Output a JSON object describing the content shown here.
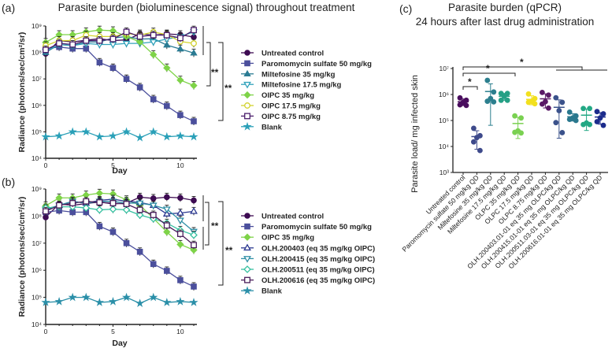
{
  "chart_data": [
    {
      "panel_label": "(a)",
      "type": "line",
      "title": "Parasite burden (bioluminescence signal) throughout treatment",
      "xlabel": "Day",
      "ylabel": "Radiance (photons/sec/cm²/sr)",
      "yscale": "log",
      "ylim": [
        10000.0,
        1000000000.0
      ],
      "xlim": [
        0,
        11
      ],
      "xticks": [
        0,
        5,
        10
      ],
      "xtick_labels": [
        "0",
        "5",
        "10"
      ],
      "yticks": [
        10000.0,
        100000.0,
        1000000.0,
        10000000.0,
        100000000.0,
        1000000000.0
      ],
      "ytick_labels": [
        "10⁴",
        "10⁵",
        "10⁶",
        "10⁷",
        "10⁸",
        "10⁹"
      ],
      "legend_position": "right",
      "x": [
        0,
        1,
        2,
        3,
        4,
        5,
        6,
        7,
        8,
        9,
        10,
        11
      ],
      "series": [
        {
          "name": "Untreated control",
          "marker": "circle",
          "color": "#3d0b52",
          "values": [
            90000000.0,
            280000000.0,
            250000000.0,
            290000000.0,
            330000000.0,
            280000000.0,
            300000000.0,
            500000000.0,
            450000000.0,
            500000000.0,
            470000000.0,
            380000000.0
          ]
        },
        {
          "name": "Paromomycin sulfate 50 mg/kg",
          "marker": "square",
          "color": "#4b4f9c",
          "values": [
            140000000.0,
            160000000.0,
            140000000.0,
            140000000.0,
            42000000.0,
            26000000.0,
            10000000.0,
            4800000.0,
            1700000.0,
            950000.0,
            430000.0,
            250000.0
          ]
        },
        {
          "name": "Miltefosine 35 mg/kg",
          "marker": "triangle-up",
          "color": "#2a7b93",
          "values": [
            100000000.0,
            200000000.0,
            180000000.0,
            250000000.0,
            250000000.0,
            350000000.0,
            400000000.0,
            320000000.0,
            330000000.0,
            190000000.0,
            135000000.0,
            95000000.0
          ]
        },
        {
          "name": "Miltefosine 17.5 mg/kg",
          "marker": "triangle-down-open",
          "color": "#31a2bb",
          "values": [
            110000000.0,
            200000000.0,
            180000000.0,
            220000000.0,
            200000000.0,
            200000000.0,
            220000000.0,
            220000000.0,
            250000000.0,
            320000000.0,
            400000000.0,
            600000000.0
          ]
        },
        {
          "name": "OlPC 35 mg/kg",
          "marker": "diamond",
          "color": "#7ed348",
          "values": [
            240000000.0,
            470000000.0,
            470000000.0,
            600000000.0,
            700000000.0,
            660000000.0,
            400000000.0,
            250000000.0,
            83000000.0,
            26000000.0,
            9000000.0,
            5600000.0
          ]
        },
        {
          "name": "OlPC 17.5 mg/kg",
          "marker": "circle-open",
          "color": "#d2d22e",
          "values": [
            180000000.0,
            280000000.0,
            280000000.0,
            450000000.0,
            400000000.0,
            400000000.0,
            520000000.0,
            450000000.0,
            590000000.0,
            470000000.0,
            260000000.0,
            220000000.0
          ]
        },
        {
          "name": "OlPC 8.75 mg/kg",
          "marker": "square-open",
          "color": "#4a1e6b",
          "values": [
            125000000.0,
            220000000.0,
            200000000.0,
            280000000.0,
            280000000.0,
            320000000.0,
            600000000.0,
            400000000.0,
            450000000.0,
            450000000.0,
            350000000.0,
            700000000.0
          ]
        },
        {
          "name": "Blank",
          "marker": "star",
          "color": "#2aa0b8",
          "values": [
            65000.0,
            70000.0,
            100000.0,
            100000.0,
            65000.0,
            70000.0,
            100000.0,
            60000.0,
            100000.0,
            65000.0,
            70000.0,
            65000.0
          ]
        }
      ],
      "annotations": [
        "**",
        "**"
      ]
    },
    {
      "panel_label": "(b)",
      "type": "line",
      "title": "",
      "xlabel": "Day",
      "ylabel": "Radiance (photons/sec/cm²/sr)",
      "yscale": "log",
      "ylim": [
        10000.0,
        1000000000.0
      ],
      "xlim": [
        0,
        11
      ],
      "xticks": [
        0,
        5,
        10
      ],
      "xtick_labels": [
        "0",
        "5",
        "10"
      ],
      "yticks": [
        10000.0,
        100000.0,
        1000000.0,
        10000000.0,
        100000000.0,
        1000000000.0
      ],
      "ytick_labels": [
        "10⁴",
        "10⁵",
        "10⁶",
        "10⁷",
        "10⁸",
        "10⁹"
      ],
      "legend_position": "right",
      "x": [
        0,
        1,
        2,
        3,
        4,
        5,
        6,
        7,
        8,
        9,
        10,
        11
      ],
      "series": [
        {
          "name": "Untreated control",
          "marker": "circle",
          "color": "#3d0b52",
          "values": [
            90000000.0,
            280000000.0,
            250000000.0,
            290000000.0,
            330000000.0,
            280000000.0,
            300000000.0,
            500000000.0,
            450000000.0,
            500000000.0,
            470000000.0,
            380000000.0
          ]
        },
        {
          "name": "Paromomycin sulfate 50 mg/kg",
          "marker": "square",
          "color": "#4b4f9c",
          "values": [
            140000000.0,
            160000000.0,
            140000000.0,
            140000000.0,
            42000000.0,
            26000000.0,
            10000000.0,
            4800000.0,
            1700000.0,
            950000.0,
            430000.0,
            250000.0
          ]
        },
        {
          "name": "OlPC 35 mg/kg",
          "marker": "diamond",
          "color": "#7ed348",
          "values": [
            240000000.0,
            470000000.0,
            470000000.0,
            600000000.0,
            700000000.0,
            660000000.0,
            400000000.0,
            250000000.0,
            83000000.0,
            26000000.0,
            9000000.0,
            5600000.0
          ]
        },
        {
          "name": "OLH.200403 (eq 35 mg/kg OlPC)",
          "marker": "triangle-up-open",
          "color": "#2b3890",
          "values": [
            160000000.0,
            250000000.0,
            350000000.0,
            300000000.0,
            380000000.0,
            420000000.0,
            350000000.0,
            320000000.0,
            250000000.0,
            120000000.0,
            130000000.0,
            150000000.0
          ]
        },
        {
          "name": "OLH.200415 (eq 35 mg/kg OlPC)",
          "marker": "triangle-down-open",
          "color": "#2f8fa6",
          "values": [
            180000000.0,
            250000000.0,
            350000000.0,
            300000000.0,
            350000000.0,
            350000000.0,
            300000000.0,
            300000000.0,
            250000000.0,
            180000000.0,
            70000000.0,
            27000000.0
          ]
        },
        {
          "name": "OLH.200511 (eq 35 mg/kg OlPC)",
          "marker": "diamond-open",
          "color": "#35c0a0",
          "values": [
            200000000.0,
            220000000.0,
            220000000.0,
            200000000.0,
            170000000.0,
            180000000.0,
            170000000.0,
            110000000.0,
            80000000.0,
            55000000.0,
            30000000.0,
            20000000.0
          ]
        },
        {
          "name": "OLH.200616 (eq 35 mg/kg OlPC)",
          "marker": "square-open",
          "color": "#4a1e5b",
          "values": [
            150000000.0,
            250000000.0,
            300000000.0,
            350000000.0,
            320000000.0,
            300000000.0,
            280000000.0,
            170000000.0,
            110000000.0,
            45000000.0,
            22000000.0,
            8500000.0
          ]
        },
        {
          "name": "Blank",
          "marker": "star",
          "color": "#2a8fa8",
          "values": [
            65000.0,
            70000.0,
            100000.0,
            100000.0,
            65000.0,
            70000.0,
            100000.0,
            60000.0,
            100000.0,
            65000.0,
            70000.0,
            65000.0
          ]
        }
      ],
      "annotations": [
        "**",
        "**"
      ]
    },
    {
      "panel_label": "(c)",
      "type": "scatter",
      "title": "Parasite burden (qPCR)",
      "subtitle": "24 hours after last drug administration",
      "xlabel": "",
      "ylabel": "Parasite load/ mg infected skin",
      "yscale": "log",
      "ylim": [
        1000.0,
        10000000.0
      ],
      "yticks": [
        1000.0,
        10000.0,
        100000.0,
        1000000.0,
        10000000.0
      ],
      "ytick_labels": [
        "10³",
        "10⁴",
        "10⁵",
        "10⁶",
        "10⁷"
      ],
      "categories": [
        "Untreated control",
        "Paromomycin sulfate 50 mg/kg QD",
        "Miltefosine 35 mg/kg QD",
        "Miltefosine 17.5 mg/kg QD",
        "OLPC 35 mg/kg QD",
        "OLPC 17.5 mg/kg QD",
        "OLPC 8.75 mg/kg QD",
        "OLH.200403.01-01 eq 35 mg OLPC/kg QD",
        "OLH.200415.01-01 eq 35 mg OLPC/kg QD",
        "OLH.200511.03-01 eq 35 mg OLPC/kg QD",
        "OLH.200616.01-01 eq 35 mg OLPC/kg QD"
      ],
      "colors": [
        "#4a0d5e",
        "#3e4a8b",
        "#2c7f8e",
        "#25a085",
        "#7ad151",
        "#f2e01e",
        "#5a1a66",
        "#3b528b",
        "#2a788e",
        "#22a884",
        "#1c2c8c"
      ],
      "points": [
        [
          740000.0,
          600000.0,
          500000.0,
          400000.0,
          380000.0
        ],
        [
          50000.0,
          26000.0,
          22000.0,
          15000.0,
          7000.0
        ],
        [
          3500000.0,
          1250000.0,
          700000.0,
          550000.0,
          520000.0
        ],
        [
          1100000.0,
          1100000.0,
          850000.0,
          600000.0,
          600000.0
        ],
        [
          150000.0,
          125000.0,
          40000.0,
          35000.0,
          33000.0
        ],
        [
          1050000.0,
          700000.0,
          550000.0,
          500000.0,
          440000.0
        ],
        [
          1200000.0,
          950000.0,
          530000.0,
          430000.0,
          300000.0
        ],
        [
          750000.0,
          500000.0,
          240000.0,
          83000.0,
          34000.0
        ],
        [
          210000.0,
          150000.0,
          125000.0,
          110000.0,
          100000.0
        ],
        [
          290000.0,
          290000.0,
          80000.0,
          70000.0,
          70000.0
        ],
        [
          220000.0,
          180000.0,
          125000.0,
          90000.0,
          65000.0
        ]
      ],
      "annotations": [
        "*",
        "*",
        "*"
      ]
    }
  ]
}
